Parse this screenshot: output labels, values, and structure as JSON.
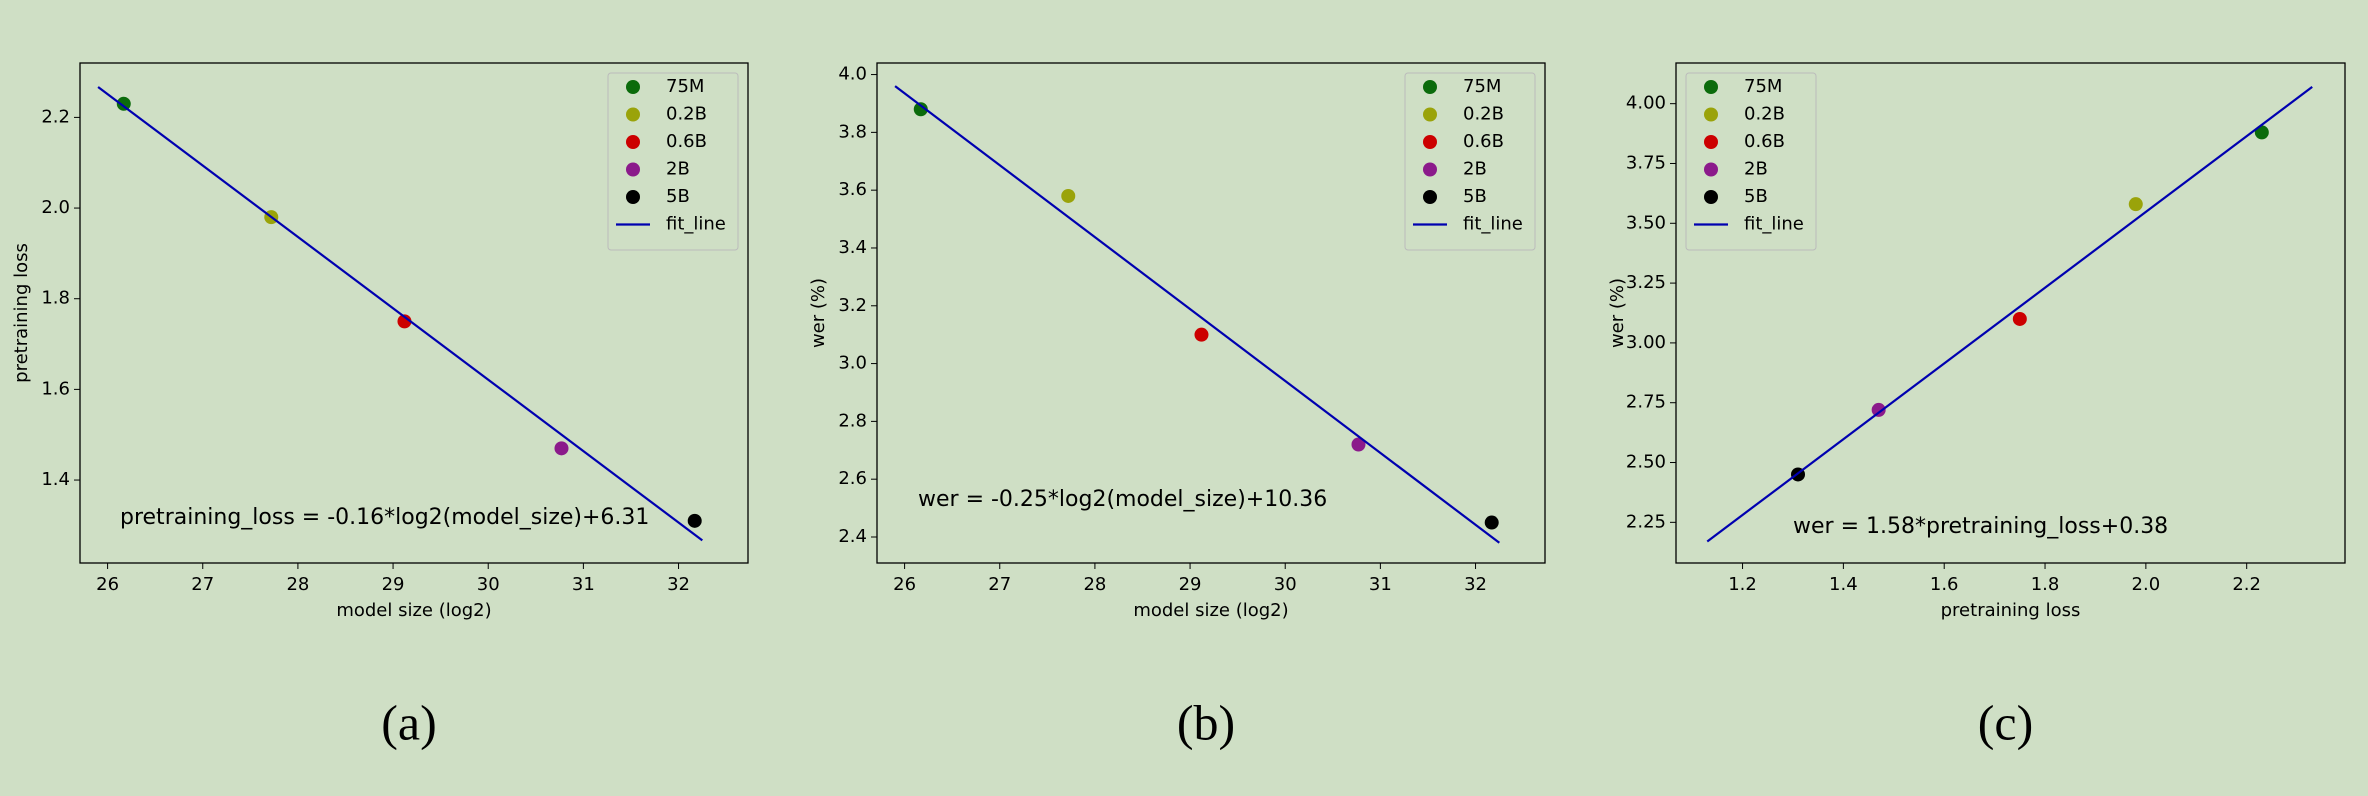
{
  "chart_data": [
    {
      "type": "scatter",
      "caption": "(a)",
      "xlabel": "model size (log2)",
      "ylabel": "pretraining loss",
      "annotation": "pretraining_loss = -0.16*log2(model_size)+6.31",
      "legend": "upper right",
      "xlim": [
        25.71,
        32.73
      ],
      "ylim": [
        1.217,
        2.32
      ],
      "xticks": [
        26,
        27,
        28,
        29,
        30,
        31,
        32
      ],
      "yticks": [
        1.4,
        1.6,
        1.8,
        {
          "value": 2.0,
          "label": "2.0"
        },
        2.2
      ],
      "series": [
        {
          "name": "75M",
          "color": "#0b6b0b",
          "x": [
            26.17
          ],
          "values": [
            2.23
          ]
        },
        {
          "name": "0.2B",
          "color": "#9aa30a",
          "x": [
            27.72
          ],
          "values": [
            1.98
          ]
        },
        {
          "name": "0.6B",
          "color": "#cc0000",
          "x": [
            29.12
          ],
          "values": [
            1.75
          ]
        },
        {
          "name": "2B",
          "color": "#8b1a8b",
          "x": [
            30.77
          ],
          "values": [
            1.47
          ]
        },
        {
          "name": "5B",
          "color": "#000000",
          "x": [
            32.17
          ],
          "values": [
            1.31
          ]
        },
        {
          "name": "fit_line",
          "color": "#0000b0",
          "kind": "line",
          "x": [
            25.9,
            32.25
          ],
          "values": [
            2.267,
            1.267
          ]
        }
      ]
    },
    {
      "type": "scatter",
      "caption": "(b)",
      "xlabel": "model size (log2)",
      "ylabel": "wer (%)",
      "annotation": "wer = -0.25*log2(model_size)+10.36",
      "legend": "upper right",
      "xlim": [
        25.71,
        32.73
      ],
      "ylim": [
        2.31,
        4.04
      ],
      "xticks": [
        26,
        27,
        28,
        29,
        30,
        31,
        32
      ],
      "yticks": [
        2.4,
        2.6,
        2.8,
        {
          "value": 3.0,
          "label": "3.0"
        },
        3.2,
        3.4,
        3.6,
        3.8,
        {
          "value": 4.0,
          "label": "4.0"
        }
      ],
      "series": [
        {
          "name": "75M",
          "color": "#0b6b0b",
          "x": [
            26.17
          ],
          "values": [
            3.88
          ]
        },
        {
          "name": "0.2B",
          "color": "#9aa30a",
          "x": [
            27.72
          ],
          "values": [
            3.58
          ]
        },
        {
          "name": "0.6B",
          "color": "#cc0000",
          "x": [
            29.12
          ],
          "values": [
            3.1
          ]
        },
        {
          "name": "2B",
          "color": "#8b1a8b",
          "x": [
            30.77
          ],
          "values": [
            2.72
          ]
        },
        {
          "name": "5B",
          "color": "#000000",
          "x": [
            32.17
          ],
          "values": [
            2.45
          ]
        },
        {
          "name": "fit_line",
          "color": "#0000b0",
          "kind": "line",
          "x": [
            25.9,
            32.25
          ],
          "values": [
            3.96,
            2.38
          ]
        }
      ]
    },
    {
      "type": "scatter",
      "caption": "(c)",
      "xlabel": "pretraining loss",
      "ylabel": "wer (%)",
      "annotation": "wer = 1.58*pretraining_loss+0.38",
      "legend": "upper left",
      "xlim": [
        1.068,
        2.395
      ],
      "ylim": [
        2.08,
        4.17
      ],
      "xticks": [
        1.2,
        1.4,
        1.6,
        1.8,
        {
          "value": 2.0,
          "label": "2.0"
        },
        2.2
      ],
      "yticks": [
        2.25,
        {
          "value": 2.5,
          "label": "2.50"
        },
        2.75,
        {
          "value": 3.0,
          "label": "3.00"
        },
        3.25,
        {
          "value": 3.5,
          "label": "3.50"
        },
        3.75,
        {
          "value": 4.0,
          "label": "4.00"
        }
      ],
      "series": [
        {
          "name": "75M",
          "color": "#0b6b0b",
          "x": [
            2.23
          ],
          "values": [
            3.88
          ]
        },
        {
          "name": "0.2B",
          "color": "#9aa30a",
          "x": [
            1.98
          ],
          "values": [
            3.58
          ]
        },
        {
          "name": "0.6B",
          "color": "#cc0000",
          "x": [
            1.75
          ],
          "values": [
            3.1
          ]
        },
        {
          "name": "2B",
          "color": "#8b1a8b",
          "x": [
            1.47
          ],
          "values": [
            2.72
          ]
        },
        {
          "name": "5B",
          "color": "#000000",
          "x": [
            1.31
          ],
          "values": [
            2.45
          ]
        },
        {
          "name": "fit_line",
          "color": "#0000b0",
          "kind": "line",
          "x": [
            1.13,
            2.33
          ],
          "values": [
            2.17,
            4.07
          ]
        }
      ]
    }
  ]
}
